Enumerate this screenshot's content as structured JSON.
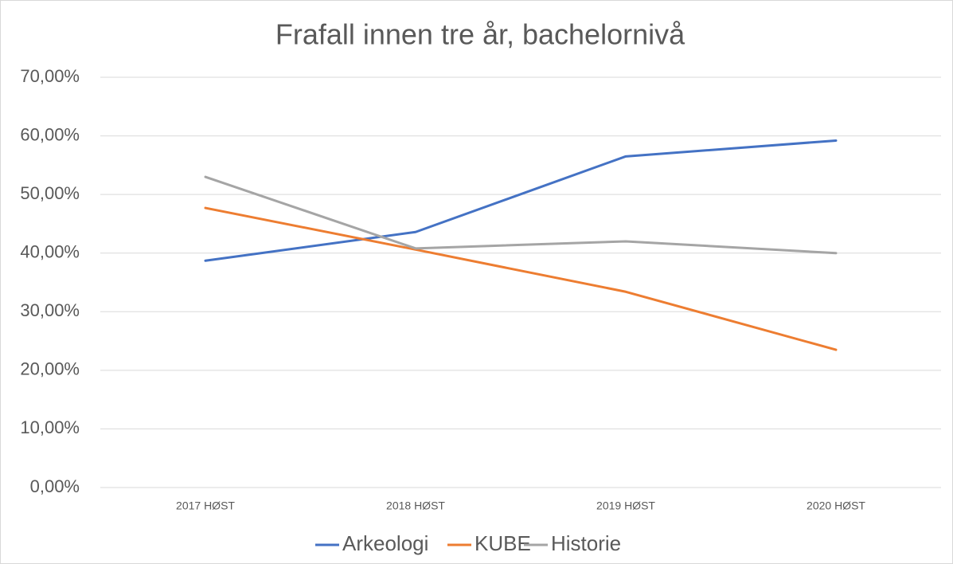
{
  "chart_data": {
    "type": "line",
    "title": "Frafall innen tre år, bachelornivå",
    "categories": [
      "2017 HØST",
      "2018 HØST",
      "2019 HØST",
      "2020 HØST"
    ],
    "series": [
      {
        "name": "Arkeologi",
        "color": "#4472c4",
        "values": [
          38.7,
          43.6,
          56.5,
          59.2
        ]
      },
      {
        "name": "KUBE",
        "color": "#ed7d31",
        "values": [
          47.7,
          40.6,
          33.4,
          23.5
        ]
      },
      {
        "name": "Historie",
        "color": "#a5a5a5",
        "values": [
          53.0,
          40.8,
          42.0,
          40.0
        ]
      }
    ],
    "ylim": [
      0,
      70
    ],
    "yticks": [
      {
        "value": 0,
        "label": "0,00%"
      },
      {
        "value": 10,
        "label": "10,00%"
      },
      {
        "value": 20,
        "label": "20,00%"
      },
      {
        "value": 30,
        "label": "30,00%"
      },
      {
        "value": 40,
        "label": "40,00%"
      },
      {
        "value": 50,
        "label": "50,00%"
      },
      {
        "value": 60,
        "label": "60,00%"
      },
      {
        "value": 70,
        "label": "70,00%"
      }
    ],
    "grid": true,
    "legend": "bottom"
  }
}
